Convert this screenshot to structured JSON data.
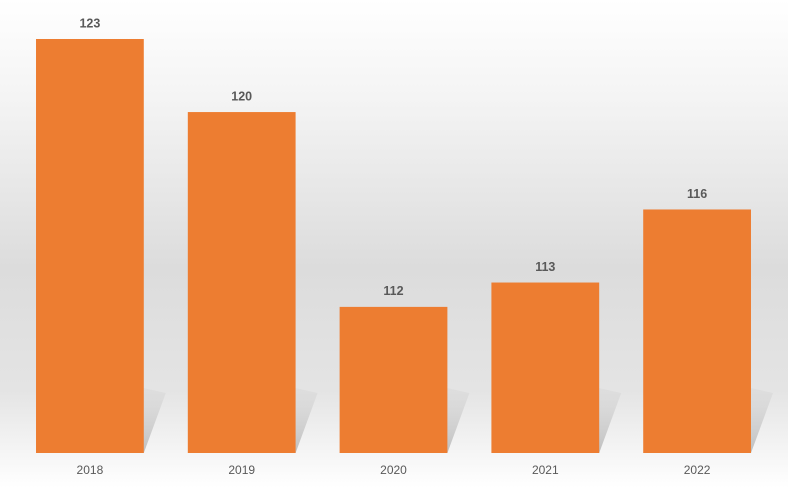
{
  "chart_data": {
    "type": "bar",
    "categories": [
      "2018",
      "2019",
      "2020",
      "2021",
      "2022"
    ],
    "values": [
      123,
      120,
      112,
      113,
      116
    ],
    "color": "#ed7d31",
    "ylim": [
      106,
      123
    ]
  }
}
